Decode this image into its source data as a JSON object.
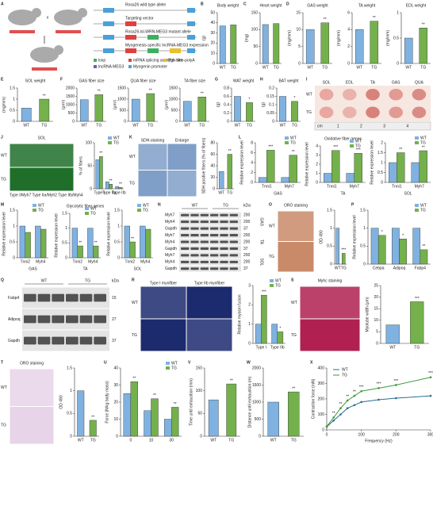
{
  "colors": [
    "#7fb2e0",
    "#74b04c"
  ],
  "panels": [
    {
      "letter": "A",
      "type": "diagram",
      "cross": "x",
      "lines": [
        "Rosa26 wild type allele",
        "Targeting vector",
        "Rosa26-lsl-WRN-MEG3 mutant allele",
        "Myogenesis-specific lncRNA-MEG3 expression"
      ],
      "legend": [
        "loxp",
        "mRNA splicing acceptor site",
        "Pgk-Neo-polyA",
        "lncRNA MEG3",
        "Myogenin promoter"
      ]
    },
    {
      "letter": "B",
      "type": "bar",
      "title": "Body weight",
      "ylabel": "(g)",
      "categories": [
        "WT",
        "TG"
      ],
      "values": [
        37,
        38
      ],
      "ylim": [
        0,
        50
      ],
      "yticks": [
        0,
        10,
        20,
        30,
        40,
        50
      ]
    },
    {
      "letter": "C",
      "type": "bar",
      "title": "Heart weight",
      "ylabel": "(mg)",
      "categories": [
        "WT",
        "TG"
      ],
      "values": [
        115,
        118
      ],
      "ylim": [
        0,
        150
      ],
      "yticks": [
        0,
        50,
        100,
        150
      ]
    },
    {
      "letter": "D",
      "type": "bar",
      "title": "GAS weight",
      "ylabel": "(mg/mm)",
      "categories": [
        "WT",
        "TG"
      ],
      "values": [
        10,
        12
      ],
      "annotations": [
        null,
        "**"
      ],
      "ylim": [
        0,
        15
      ],
      "yticks": [
        0,
        5,
        10,
        15
      ]
    },
    {
      "type": "bar",
      "title": "TA weight",
      "ylabel": "(mg/mm)",
      "categories": [
        "WT",
        "TG"
      ],
      "values": [
        4,
        5
      ],
      "annotations": [
        null,
        "**"
      ],
      "ylim": [
        0,
        6
      ],
      "yticks": [
        0,
        2,
        4,
        6
      ]
    },
    {
      "type": "bar",
      "title": "EDL weight",
      "ylabel": "(mg/mm)",
      "categories": [
        "WT",
        "TG"
      ],
      "values": [
        0.5,
        0.7
      ],
      "annotations": [
        null,
        "**"
      ],
      "ylim": [
        0,
        1
      ],
      "yticks": [
        0,
        0.5,
        1
      ]
    },
    {
      "letter": "E",
      "type": "bar",
      "title": "SOL weight",
      "ylabel": "(mg/mm)",
      "categories": [
        "WT",
        "TG"
      ],
      "values": [
        0.6,
        1.0
      ],
      "annotations": [
        null,
        "**"
      ],
      "ylim": [
        0,
        1.5
      ],
      "yticks": [
        0,
        0.5,
        1,
        1.5
      ]
    },
    {
      "letter": "F",
      "type": "bar",
      "title": "GAS fiber size",
      "ylabel": "(μm²)",
      "categories": [
        "WT",
        "TG"
      ],
      "values": [
        1300,
        1600
      ],
      "annotations": [
        null,
        "**"
      ],
      "ylim": [
        0,
        2000
      ],
      "yticks": [
        0,
        500,
        1000,
        1500,
        2000
      ]
    },
    {
      "type": "bar",
      "title": "QUA fiber size",
      "ylabel": "(μm²)",
      "categories": [
        "WT",
        "TG"
      ],
      "values": [
        1000,
        1250
      ],
      "annotations": [
        null,
        "**"
      ],
      "ylim": [
        0,
        1500
      ],
      "yticks": [
        0,
        500,
        1000,
        1500
      ]
    },
    {
      "type": "bar",
      "title": "TA fiber size",
      "ylabel": "(μm²)",
      "categories": [
        "WT",
        "TG"
      ],
      "values": [
        900,
        1100
      ],
      "annotations": [
        null,
        "**"
      ],
      "ylim": [
        0,
        1500
      ],
      "yticks": [
        0,
        500,
        1000,
        1500
      ]
    },
    {
      "letter": "G",
      "type": "bar",
      "title": "WAT weight",
      "ylabel": "(g)",
      "categories": [
        "WT",
        "TG"
      ],
      "values": [
        0.6,
        0.45
      ],
      "annotations": [
        null,
        "*"
      ],
      "ylim": [
        0,
        0.8
      ],
      "yticks": [
        0,
        0.2,
        0.4,
        0.6,
        0.8
      ]
    },
    {
      "letter": "H",
      "type": "bar",
      "title": "BAT weight",
      "ylabel": "(g)",
      "categories": [
        "WT",
        "TG"
      ],
      "values": [
        0.15,
        0.12
      ],
      "annotations": [
        null,
        "*"
      ],
      "ylim": [
        0,
        0.2
      ],
      "yticks": [
        0,
        0.05,
        0.1,
        0.15,
        0.2
      ]
    },
    {
      "letter": "I",
      "type": "image",
      "cols": [
        "SOL",
        "EDL",
        "TA",
        "GAS",
        "QUA"
      ],
      "rows": [
        "WT",
        "TG"
      ],
      "scale_label": "cm",
      "scale_ticks": [
        1,
        2,
        3,
        4
      ]
    },
    {
      "letter": "J",
      "type": "image",
      "title": "SOL",
      "rows": [
        "WT",
        "TG"
      ],
      "caption": "Type I/Myh7 Type IIa/Myh2 Type IIb/Myh4"
    },
    {
      "type": "grouped",
      "ylabel": "% of fibers",
      "categories": [
        "Type I",
        "Type IIa",
        "Type IIb"
      ],
      "series": [
        {
          "name": "WT",
          "values": [
            63,
            15,
            5
          ]
        },
        {
          "name": "TG",
          "values": [
            70,
            10,
            3
          ],
          "annotations": [
            "**",
            "**",
            "**"
          ]
        }
      ],
      "ylim": [
        0,
        100
      ],
      "yticks": [
        0,
        50,
        100
      ]
    },
    {
      "letter": "K",
      "type": "image",
      "cols": [
        "SDH-staining",
        "Enlarge"
      ],
      "rows": [
        "WT",
        "TG"
      ]
    },
    {
      "type": "bar",
      "ylabel": "SDH positive fibers (% of fibers)",
      "categories": [
        "WT",
        "TG"
      ],
      "values": [
        30,
        60
      ],
      "annotations": [
        null,
        "**"
      ],
      "ylim": [
        0,
        80
      ],
      "yticks": [
        0,
        20,
        40,
        60,
        80
      ]
    },
    {
      "letter": "L",
      "type": "grouped",
      "ylabel": "Relative expression level",
      "xlabel": "GAS",
      "categories": [
        "Tnni1",
        "Myh7"
      ],
      "series": [
        {
          "name": "WT",
          "values": [
            1,
            1
          ]
        },
        {
          "name": "TG",
          "values": [
            6.5,
            5.5
          ],
          "annotations": [
            "***",
            "**"
          ]
        }
      ],
      "ylim": [
        0,
        8
      ],
      "yticks": [
        0,
        2,
        4,
        6,
        8
      ]
    },
    {
      "type": "grouped",
      "title": "Oxidative fiber genes",
      "ylabel": "Relative expression level",
      "xlabel": "TA",
      "categories": [
        "Tnni1",
        "Myh7"
      ],
      "series": [
        {
          "name": "WT",
          "values": [
            1,
            1
          ]
        },
        {
          "name": "TG",
          "values": [
            3.5,
            3.2
          ],
          "annotations": [
            "***",
            "***"
          ]
        }
      ],
      "ylim": [
        0,
        4
      ],
      "yticks": [
        0,
        1,
        2,
        3,
        4
      ]
    },
    {
      "type": "grouped",
      "ylabel": "Relative expression level",
      "xlabel": "SOL",
      "categories": [
        "Tnni1",
        "Myh7"
      ],
      "series": [
        {
          "name": "WT",
          "values": [
            1,
            1
          ]
        },
        {
          "name": "TG",
          "values": [
            1.5,
            1.6
          ],
          "annotations": [
            "**",
            "**"
          ]
        }
      ],
      "ylim": [
        0,
        2
      ],
      "yticks": [
        0,
        0.5,
        1,
        1.5,
        2
      ]
    },
    {
      "letter": "M",
      "type": "grouped",
      "ylabel": "Relative expression level",
      "xlabel": "GAS",
      "categories": [
        "Tnni2",
        "Myh4"
      ],
      "series": [
        {
          "name": "WT",
          "values": [
            1,
            1
          ]
        },
        {
          "name": "TG",
          "values": [
            0.8,
            0.9
          ]
        }
      ],
      "ylim": [
        0,
        1.5
      ],
      "yticks": [
        0,
        0.5,
        1,
        1.5
      ]
    },
    {
      "type": "grouped",
      "title": "Glycolytic fiber genes",
      "ylabel": "Relative expression level",
      "xlabel": "TA",
      "categories": [
        "Tnni2",
        "Myh4"
      ],
      "series": [
        {
          "name": "WT",
          "values": [
            1,
            1
          ]
        },
        {
          "name": "TG",
          "values": [
            0.4,
            0.4
          ],
          "annotations": [
            "**",
            "**"
          ]
        }
      ],
      "ylim": [
        0,
        1.5
      ],
      "yticks": [
        0,
        0.5,
        1,
        1.5
      ]
    },
    {
      "type": "grouped",
      "ylabel": "Relative expression level",
      "xlabel": "SOL",
      "categories": [
        "Tnni2",
        "Myh4"
      ],
      "series": [
        {
          "name": "WT",
          "values": [
            1,
            1
          ]
        },
        {
          "name": "TG",
          "values": [
            0.5,
            0.9
          ],
          "annotations": [
            "**",
            null
          ]
        }
      ],
      "ylim": [
        0,
        1.5
      ],
      "yticks": [
        0,
        0.5,
        1,
        1.5
      ]
    },
    {
      "letter": "N",
      "type": "blot",
      "cols": [
        "WT",
        "TG"
      ],
      "unit": "kDa",
      "groups": [
        "GAS",
        "TA",
        "SOL"
      ],
      "rows": [
        {
          "name": "Myh7",
          "kda": 200
        },
        {
          "name": "Myh4",
          "kda": 200
        },
        {
          "name": "Gapdh",
          "kda": 37
        },
        {
          "name": "Myh7",
          "kda": 200
        },
        {
          "name": "Myh4",
          "kda": 200
        },
        {
          "name": "Gapdh",
          "kda": 37
        },
        {
          "name": "Myh7",
          "kda": 200
        },
        {
          "name": "Myh4",
          "kda": 200
        },
        {
          "name": "Gapdh",
          "kda": 37
        }
      ]
    },
    {
      "letter": "O",
      "type": "image",
      "title": "ORO staining",
      "rows": [
        "WT",
        "TG"
      ]
    },
    {
      "type": "bar",
      "ylabel": "OD 490",
      "categories": [
        "WT",
        "TG"
      ],
      "values": [
        1.0,
        0.3
      ],
      "annotations": [
        null,
        "***"
      ],
      "ylim": [
        0,
        1.5
      ],
      "yticks": [
        0,
        0.5,
        1,
        1.5
      ]
    },
    {
      "letter": "P",
      "type": "grouped",
      "ylabel": "Relative expression level",
      "categories": [
        "Cebpa",
        "Adipoq",
        "Fabp4"
      ],
      "series": [
        {
          "name": "WT",
          "values": [
            1,
            1,
            1
          ]
        },
        {
          "name": "TG",
          "values": [
            0.8,
            0.7,
            0.4
          ],
          "annotations": [
            "*",
            "*",
            "**"
          ]
        }
      ],
      "ylim": [
        0,
        1.5
      ],
      "yticks": [
        0,
        0.5,
        1,
        1.5
      ]
    },
    {
      "letter": "Q",
      "type": "blot",
      "cols": [
        "WT",
        "TG"
      ],
      "unit": "kDa",
      "rows": [
        {
          "name": "Fabp4",
          "kda": 15
        },
        {
          "name": "Adipoq",
          "kda": 27
        },
        {
          "name": "Gapdh",
          "kda": 37
        }
      ]
    },
    {
      "letter": "R",
      "type": "image",
      "cols": [
        "Type I myofiber",
        "Type IIb myofiber"
      ],
      "rows": [
        "WT",
        "TG"
      ]
    },
    {
      "type": "grouped",
      "ylabel": "Relative myosin fusion",
      "categories": [
        "Type I",
        "Type IIb"
      ],
      "series": [
        {
          "name": "WT",
          "values": [
            1,
            1
          ]
        },
        {
          "name": "TG",
          "values": [
            2.5,
            0.6
          ],
          "annotations": [
            "***",
            "*"
          ]
        }
      ],
      "ylim": [
        0,
        3
      ],
      "yticks": [
        0,
        1,
        2,
        3
      ]
    },
    {
      "letter": "S",
      "type": "image",
      "title": "Myhc staining",
      "rows": [
        "WT",
        "TG"
      ]
    },
    {
      "type": "bar",
      "ylabel": "Myotube width (μm)",
      "categories": [
        "WT",
        "TG"
      ],
      "values": [
        8,
        18
      ],
      "annotations": [
        null,
        "***"
      ],
      "ylim": [
        0,
        25
      ],
      "yticks": [
        0,
        5,
        10,
        15,
        20,
        25
      ]
    },
    {
      "letter": "T",
      "type": "image",
      "title": "ORO staining",
      "rows": [
        "WT",
        "TG"
      ]
    },
    {
      "type": "bar",
      "ylabel": "OD 490",
      "categories": [
        "WT",
        "TG"
      ],
      "values": [
        1.0,
        0.35
      ],
      "annotations": [
        null,
        "**"
      ],
      "ylim": [
        0,
        1.5
      ],
      "yticks": [
        0,
        0.5,
        1,
        1.5
      ]
    },
    {
      "letter": "U",
      "type": "grouped",
      "ylabel": "Force (N/kg body mass)",
      "categories": [
        "0",
        "10",
        "30"
      ],
      "series": [
        {
          "name": "WT",
          "values": [
            25,
            15,
            10
          ]
        },
        {
          "name": "TG",
          "values": [
            32,
            22,
            17
          ],
          "annotations": [
            "**",
            "**",
            "**"
          ]
        }
      ],
      "ylim": [
        0,
        40
      ],
      "yticks": [
        0,
        10,
        20,
        30,
        40
      ]
    },
    {
      "letter": "V",
      "type": "bar",
      "ylabel": "Time until exhaustion (min)",
      "categories": [
        "WT",
        "TG"
      ],
      "values": [
        80,
        115
      ],
      "annotations": [
        null,
        "**"
      ],
      "ylim": [
        0,
        150
      ],
      "yticks": [
        0,
        50,
        100,
        150
      ]
    },
    {
      "letter": "W",
      "type": "bar",
      "ylabel": "Distance until exhaustion (m)",
      "categories": [
        "WT",
        "TG"
      ],
      "values": [
        1000,
        1300
      ],
      "annotations": [
        null,
        "**"
      ],
      "ylim": [
        0,
        2000
      ],
      "yticks": [
        0,
        500,
        1000,
        1500,
        2000
      ]
    },
    {
      "letter": "X",
      "type": "line",
      "ylabel": "Contraction force (mN)",
      "xlabel": "Frequency (Hz)",
      "x": [
        0,
        20,
        40,
        60,
        80,
        100,
        150,
        200,
        300
      ],
      "series": [
        {
          "name": "WT",
          "values": [
            20,
            60,
            100,
            140,
            160,
            180,
            195,
            205,
            220
          ]
        },
        {
          "name": "TG",
          "values": [
            22,
            80,
            140,
            190,
            220,
            250,
            270,
            290,
            340
          ],
          "annotations": [
            null,
            "**",
            "**",
            "**",
            "**",
            "***",
            "***",
            "***",
            "***"
          ]
        }
      ],
      "xlim": [
        0,
        300
      ],
      "xticks": [
        0,
        100,
        200,
        300
      ],
      "ylim": [
        0,
        400
      ],
      "yticks": [
        0,
        100,
        200,
        300,
        400
      ]
    }
  ]
}
